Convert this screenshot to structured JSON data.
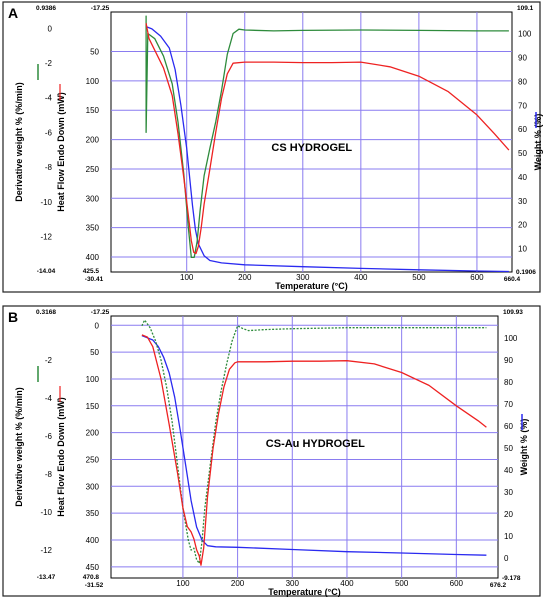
{
  "chart_data": [
    {
      "type": "line",
      "panel_label": "A",
      "annotation": "CS HYDROGEL",
      "xlabel": "Temperature (°C)",
      "ylabel_deriv": "Derivative weight % (%/min)",
      "ylabel_heat": "Heat Flow Endo Down (mW)",
      "ylabel_weight": "Weight % (%)",
      "x_min_label": "-30.41",
      "x_max_label": "660.4",
      "xlim": [
        -30.41,
        660.4
      ],
      "x_ticks": [
        "100",
        "200",
        "300",
        "400",
        "500",
        "600"
      ],
      "deriv_top_label": "0.9386",
      "deriv_bottom_label": "-14.04",
      "deriv_ticks": [
        "0",
        "-2",
        "-4",
        "-6",
        "-8",
        "-10",
        "-12"
      ],
      "heat_top_label": "-17.25",
      "heat_bottom_label": "425.5",
      "heat_ticks": [
        "50",
        "100",
        "150",
        "200",
        "250",
        "300",
        "350",
        "400"
      ],
      "weight_top_label": "109.1",
      "weight_bottom_label": "0.1906",
      "weight_ticks": [
        "100",
        "90",
        "80",
        "70",
        "60",
        "50",
        "40",
        "30",
        "20",
        "10"
      ],
      "colors": {
        "weight": "#2a2af0",
        "deriv": "#2e8b3c",
        "heat": "#ee2222"
      },
      "series": [
        {
          "key": "weight",
          "axis": "weight",
          "dashed": false,
          "x": [
            30,
            40,
            55,
            70,
            80,
            90,
            100,
            105,
            110,
            115,
            120,
            130,
            140,
            160,
            200,
            300,
            400,
            500,
            600,
            655
          ],
          "y": [
            103,
            102,
            99,
            94,
            85,
            70,
            52,
            40,
            28,
            18,
            12,
            7,
            5,
            4,
            3.2,
            2.4,
            1.7,
            1.1,
            0.6,
            0.4
          ]
        },
        {
          "key": "deriv",
          "axis": "deriv",
          "dashed": false,
          "x": [
            30,
            30,
            30,
            33,
            45,
            60,
            75,
            85,
            95,
            103,
            108,
            113,
            118,
            123,
            130,
            140,
            150,
            160,
            170,
            180,
            190,
            200,
            250,
            300,
            400,
            500,
            600,
            655
          ],
          "y": [
            -1.2,
            0.7,
            -6,
            -0.3,
            -0.6,
            -1.6,
            -3.2,
            -5.4,
            -8.4,
            -11.5,
            -13.2,
            -13.2,
            -12.3,
            -10.5,
            -8.5,
            -6.9,
            -5.4,
            -3.6,
            -1.5,
            -0.3,
            -0.05,
            -0.1,
            -0.15,
            -0.12,
            -0.1,
            -0.12,
            -0.15,
            -0.15
          ]
        },
        {
          "key": "heat",
          "axis": "heat",
          "dashed": false,
          "x": [
            30,
            35,
            45,
            60,
            75,
            85,
            95,
            103,
            108,
            112,
            116,
            120,
            125,
            130,
            140,
            150,
            160,
            170,
            180,
            200,
            250,
            300,
            350,
            400,
            450,
            500,
            550,
            600,
            630,
            655
          ],
          "y": [
            2,
            28,
            48,
            78,
            125,
            190,
            265,
            330,
            372,
            392,
            394,
            382,
            350,
            310,
            250,
            188,
            130,
            88,
            70,
            68,
            68,
            69,
            69,
            68,
            76,
            92,
            118,
            158,
            190,
            218
          ]
        }
      ]
    },
    {
      "type": "line",
      "panel_label": "B",
      "annotation": "CS-Au HYDROGEL",
      "xlabel": "Temperature (°C)",
      "ylabel_deriv": "Derivative weight % (%/min)",
      "ylabel_heat": "Heat Flow Endo Down (mW)",
      "ylabel_weight": "Weight % (%)",
      "x_min_label": "-31.52",
      "x_max_label": "676.2",
      "xlim": [
        -31.52,
        676.2
      ],
      "x_ticks": [
        "100",
        "200",
        "300",
        "400",
        "500",
        "600"
      ],
      "deriv_top_label": "0.3168",
      "deriv_bottom_label": "-13.47",
      "deriv_ticks": [
        "-2",
        "-4",
        "-6",
        "-8",
        "-10",
        "-12"
      ],
      "heat_top_label": "-17.25",
      "heat_bottom_label": "470.8",
      "heat_ticks": [
        "0",
        "50",
        "100",
        "150",
        "200",
        "250",
        "300",
        "350",
        "400",
        "450"
      ],
      "weight_top_label": "109.93",
      "weight_bottom_label": "-9.178",
      "weight_ticks": [
        "100",
        "90",
        "80",
        "70",
        "60",
        "50",
        "40",
        "30",
        "20",
        "10",
        "0"
      ],
      "colors": {
        "weight": "#2a2af0",
        "deriv": "#2e8b3c",
        "heat": "#ee2222"
      },
      "series": [
        {
          "key": "weight",
          "axis": "weight",
          "dashed": false,
          "x": [
            25,
            35,
            45,
            55,
            65,
            75,
            85,
            95,
            105,
            115,
            125,
            135,
            145,
            160,
            200,
            300,
            400,
            500,
            600,
            655
          ],
          "y": [
            101,
            100,
            99,
            96,
            91,
            84,
            73,
            58,
            42,
            26,
            14,
            8,
            5.5,
            5,
            4.8,
            3.8,
            2.8,
            2.2,
            1.5,
            1.2
          ]
        },
        {
          "key": "deriv",
          "axis": "deriv",
          "dashed": true,
          "x": [
            25,
            30,
            40,
            50,
            60,
            70,
            80,
            90,
            100,
            110,
            115,
            120,
            125,
            130,
            135,
            140,
            150,
            160,
            170,
            180,
            190,
            200,
            210,
            220,
            250,
            300,
            400,
            500,
            600,
            655
          ],
          "y": [
            -0.2,
            0.1,
            -0.3,
            -1.0,
            -2.0,
            -3.4,
            -5.2,
            -7.5,
            -9.8,
            -11.5,
            -12.0,
            -11.9,
            -12.5,
            -12.7,
            -11.5,
            -9.8,
            -7.5,
            -5.3,
            -3.6,
            -2.2,
            -1.0,
            -0.2,
            -0.35,
            -0.45,
            -0.4,
            -0.35,
            -0.3,
            -0.3,
            -0.3,
            -0.3
          ]
        },
        {
          "key": "heat",
          "axis": "heat",
          "dashed": false,
          "x": [
            25,
            35,
            45,
            60,
            75,
            90,
            100,
            108,
            115,
            120,
            125,
            130,
            133,
            138,
            145,
            155,
            165,
            175,
            185,
            195,
            200,
            250,
            300,
            350,
            400,
            450,
            500,
            550,
            600,
            640,
            655
          ],
          "y": [
            18,
            22,
            40,
            100,
            185,
            275,
            340,
            375,
            385,
            398,
            418,
            430,
            447,
            415,
            320,
            230,
            165,
            115,
            82,
            70,
            68,
            68,
            67,
            67,
            66,
            72,
            88,
            112,
            150,
            178,
            190
          ]
        }
      ]
    }
  ]
}
